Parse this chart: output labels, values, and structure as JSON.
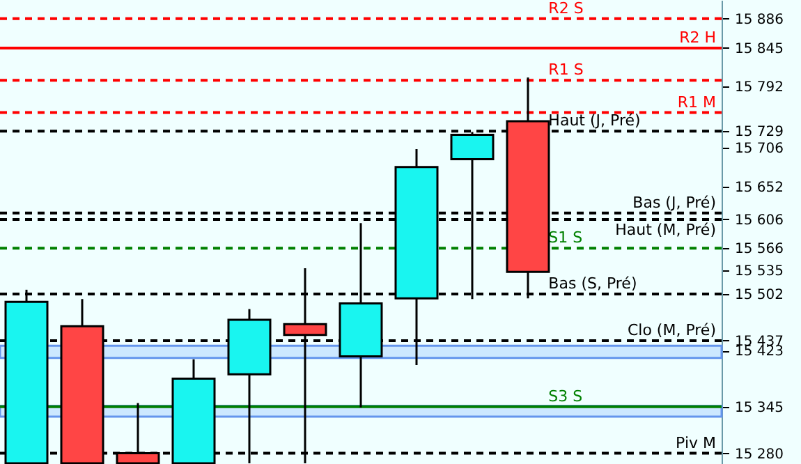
{
  "chart_data": {
    "type": "candlestick",
    "categories": [
      null,
      null,
      null,
      null,
      null,
      null,
      null,
      null,
      null,
      null,
      null,
      null,
      null
    ],
    "ohlc": [
      [
        15266,
        15508,
        15266,
        15491
      ],
      [
        15457,
        15495,
        15266,
        15266
      ],
      [
        15280,
        15350,
        15266,
        15266
      ],
      [
        15266,
        15411,
        15266,
        15384
      ],
      [
        15390,
        15481,
        15266,
        15466
      ],
      [
        15460,
        15538,
        15266,
        15445
      ],
      [
        15415,
        15601,
        15344,
        15489
      ],
      [
        15496,
        15704,
        15403,
        15679
      ],
      [
        15690,
        15728,
        15495,
        15724
      ],
      [
        15743,
        15804,
        15496,
        15533
      ],
      null,
      null,
      null
    ],
    "colors": [
      "#19f5f0",
      "#ff4545",
      "#ff4545",
      "#19f5f0",
      "#19f5f0",
      "#ff4545",
      "#19f5f0",
      "#19f5f0",
      "#19f5f0",
      "#ff4545",
      null,
      null,
      null
    ],
    "ylim": [
      15265,
      15912
    ],
    "yticks": [
      {
        "value": 15886,
        "label": "15 886"
      },
      {
        "value": 15845,
        "label": "15 845"
      },
      {
        "value": 15792,
        "label": "15 792"
      },
      {
        "value": 15729,
        "label": "15 729"
      },
      {
        "value": 15706,
        "label": "15 706"
      },
      {
        "value": 15652,
        "label": "15 652"
      },
      {
        "value": 15606,
        "label": "15 606"
      },
      {
        "value": 15566,
        "label": "15 566"
      },
      {
        "value": 15535,
        "label": "15 535"
      },
      {
        "value": 15502,
        "label": "15 502"
      },
      {
        "value": 15437,
        "label": "15 437"
      },
      {
        "value": 15423,
        "label": "15 423"
      },
      {
        "value": 15345,
        "label": "15 345"
      },
      {
        "value": 15280,
        "label": "15 280"
      }
    ],
    "ref_lines": [
      {
        "axis": "y",
        "value": 15886,
        "label": "R2 S",
        "color": "#ff0000",
        "line_style": "dashed"
      },
      {
        "axis": "y",
        "value": 15845,
        "label": "R2 H",
        "color": "#ff0000",
        "line_style": "solid"
      },
      {
        "axis": "y",
        "value": 15800,
        "label": "R1 S",
        "color": "#ff0000",
        "line_style": "dashed"
      },
      {
        "axis": "y",
        "value": 15755,
        "label": "R1 M",
        "color": "#ff0000",
        "line_style": "dashed"
      },
      {
        "axis": "y",
        "value": 15729,
        "label": "Haut (J, Pré)",
        "color": "#000000",
        "line_style": "dashed"
      },
      {
        "axis": "y",
        "value": 15606,
        "label": "Haut (M, Pré)",
        "color": "#000000",
        "line_style": "dashed"
      },
      {
        "axis": "y",
        "value": 15566,
        "label": "S1 S",
        "color": "#008000",
        "line_style": "dashed"
      },
      {
        "axis": "y",
        "value": 15615,
        "label": "Bas (J, Pré)",
        "color": "#000000",
        "line_style": "dashed"
      },
      {
        "axis": "y",
        "value": 15502,
        "label": "Bas (S, Pré)",
        "color": "#000000",
        "line_style": "dashed"
      },
      {
        "axis": "y",
        "value": 15437,
        "label": "Clo (M, Pré)",
        "color": "#000000",
        "line_style": "dashed"
      },
      {
        "axis": "y",
        "value": 15345,
        "label": "S3 S",
        "color": "#008000",
        "line_style": "solid"
      },
      {
        "axis": "y",
        "value": 15280,
        "label": "Piv M",
        "color": "#000000",
        "line_style": "dashed"
      }
    ],
    "bands": [
      {
        "axis": "y",
        "from": 15413,
        "to": 15430,
        "color": "#cce8ff"
      },
      {
        "axis": "y",
        "from": 15331,
        "to": 15346,
        "color": "#cce8ff"
      }
    ]
  }
}
